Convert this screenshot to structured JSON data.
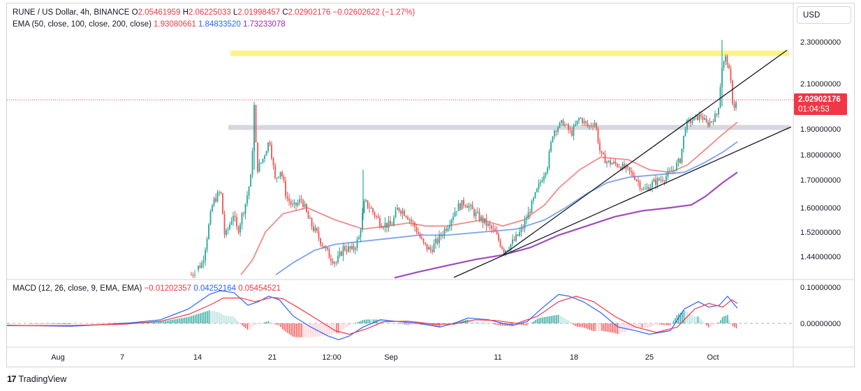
{
  "header": {
    "symbol": "RUNE / US Dollar, 4h, BINANCE",
    "open_label": "O",
    "open": "2.05461959",
    "high_label": "H",
    "high": "2.06225033",
    "low_label": "L",
    "low": "2.01998457",
    "close_label": "C",
    "close": "2.02902176",
    "change": "−0.02602622 (−1.27%)"
  },
  "ema_legend": {
    "label": "EMA (50, close, 100, close, 200, close)",
    "v50": "1.93080661",
    "v100": "1.84833520",
    "v200": "1.73233078"
  },
  "macd_legend": {
    "label": "MACD (12, 26, close, 9, EMA, EMA)",
    "hist": "−0.01202357",
    "macd": "0.04252164",
    "signal": "0.05454521"
  },
  "currency_button": "USD",
  "price_badge": {
    "price": "2.02902176",
    "countdown": "01:04:53"
  },
  "branding": "TradingView",
  "colors": {
    "up": "#26a69a",
    "down": "#ef5350",
    "ema50": "#f28b8b",
    "ema100": "#7ea1ef",
    "ema200": "#a04bbd",
    "macd": "#2962ff",
    "signal": "#f23645",
    "resistance_zone": "#fff176",
    "support_zone": "#d1d4dc"
  },
  "chart_data": [
    {
      "type": "candlestick",
      "x_labels": [
        "Aug",
        "7",
        "14",
        "21",
        "12:00",
        "Sep",
        "11",
        "18",
        "25",
        "Oct"
      ],
      "y_ticks": [
        "2.30000000",
        "2.10000000",
        "1.90000000",
        "1.80000000",
        "1.70000000",
        "1.60000000",
        "1.52000000",
        "1.44000000"
      ],
      "y_tick_values": [
        2.3,
        2.1,
        1.9,
        1.8,
        1.7,
        1.6,
        1.52,
        1.44
      ],
      "last_price": 2.02902176,
      "keypoints": [
        [
          274,
          1.38
        ],
        [
          290,
          1.42
        ],
        [
          305,
          1.62
        ],
        [
          316,
          1.66
        ],
        [
          322,
          1.5
        ],
        [
          334,
          1.58
        ],
        [
          340,
          1.52
        ],
        [
          352,
          1.62
        ],
        [
          360,
          1.72
        ],
        [
          364,
          2.0
        ],
        [
          368,
          1.74
        ],
        [
          376,
          1.78
        ],
        [
          386,
          1.86
        ],
        [
          394,
          1.7
        ],
        [
          402,
          1.74
        ],
        [
          410,
          1.64
        ],
        [
          420,
          1.6
        ],
        [
          432,
          1.63
        ],
        [
          442,
          1.56
        ],
        [
          452,
          1.52
        ],
        [
          462,
          1.48
        ],
        [
          472,
          1.44
        ],
        [
          482,
          1.42
        ],
        [
          492,
          1.47
        ],
        [
          505,
          1.46
        ],
        [
          514,
          1.5
        ],
        [
          522,
          1.62
        ],
        [
          530,
          1.6
        ],
        [
          545,
          1.55
        ],
        [
          560,
          1.54
        ],
        [
          570,
          1.6
        ],
        [
          582,
          1.58
        ],
        [
          596,
          1.53
        ],
        [
          606,
          1.48
        ],
        [
          616,
          1.46
        ],
        [
          626,
          1.49
        ],
        [
          640,
          1.54
        ],
        [
          654,
          1.6
        ],
        [
          666,
          1.62
        ],
        [
          680,
          1.58
        ],
        [
          695,
          1.55
        ],
        [
          708,
          1.52
        ],
        [
          722,
          1.46
        ],
        [
          736,
          1.49
        ],
        [
          748,
          1.53
        ],
        [
          760,
          1.6
        ],
        [
          772,
          1.68
        ],
        [
          784,
          1.76
        ],
        [
          792,
          1.89
        ],
        [
          806,
          1.93
        ],
        [
          818,
          1.88
        ],
        [
          830,
          1.95
        ],
        [
          842,
          1.91
        ],
        [
          852,
          1.93
        ],
        [
          860,
          1.8
        ],
        [
          870,
          1.77
        ],
        [
          885,
          1.76
        ],
        [
          898,
          1.74
        ],
        [
          910,
          1.71
        ],
        [
          922,
          1.66
        ],
        [
          936,
          1.69
        ],
        [
          952,
          1.71
        ],
        [
          964,
          1.74
        ],
        [
          974,
          1.78
        ],
        [
          982,
          1.92
        ],
        [
          992,
          1.94
        ],
        [
          1004,
          1.96
        ],
        [
          1012,
          1.92
        ],
        [
          1020,
          1.94
        ],
        [
          1028,
          1.97
        ],
        [
          1034,
          2.18
        ],
        [
          1040,
          2.23
        ],
        [
          1046,
          2.12
        ],
        [
          1050,
          1.99
        ],
        [
          1056,
          2.03
        ]
      ]
    },
    {
      "type": "line",
      "name": "EMA",
      "series": [
        {
          "name": "50",
          "color": "#f28b8b",
          "points": [
            [
              345,
              1.38
            ],
            [
              362,
              1.43
            ],
            [
              380,
              1.52
            ],
            [
              405,
              1.58
            ],
            [
              440,
              1.6
            ],
            [
              480,
              1.56
            ],
            [
              520,
              1.53
            ],
            [
              555,
              1.54
            ],
            [
              585,
              1.55
            ],
            [
              610,
              1.54
            ],
            [
              640,
              1.54
            ],
            [
              690,
              1.56
            ],
            [
              720,
              1.54
            ],
            [
              750,
              1.56
            ],
            [
              780,
              1.61
            ],
            [
              800,
              1.67
            ],
            [
              830,
              1.74
            ],
            [
              860,
              1.79
            ],
            [
              900,
              1.78
            ],
            [
              930,
              1.74
            ],
            [
              960,
              1.73
            ],
            [
              985,
              1.76
            ],
            [
              1010,
              1.82
            ],
            [
              1035,
              1.88
            ],
            [
              1056,
              1.93
            ]
          ]
        },
        {
          "name": "100",
          "color": "#7ea1ef",
          "points": [
            [
              395,
              1.38
            ],
            [
              420,
              1.42
            ],
            [
              450,
              1.46
            ],
            [
              480,
              1.48
            ],
            [
              520,
              1.49
            ],
            [
              560,
              1.5
            ],
            [
              600,
              1.51
            ],
            [
              640,
              1.51
            ],
            [
              690,
              1.52
            ],
            [
              740,
              1.53
            ],
            [
              780,
              1.56
            ],
            [
              810,
              1.6
            ],
            [
              840,
              1.65
            ],
            [
              870,
              1.69
            ],
            [
              900,
              1.71
            ],
            [
              940,
              1.72
            ],
            [
              980,
              1.73
            ],
            [
              1010,
              1.77
            ],
            [
              1035,
              1.81
            ],
            [
              1056,
              1.85
            ]
          ]
        },
        {
          "name": "200",
          "color": "#a04bbd",
          "points": [
            [
              565,
              1.37
            ],
            [
              600,
              1.39
            ],
            [
              640,
              1.41
            ],
            [
              680,
              1.43
            ],
            [
              720,
              1.445
            ],
            [
              760,
              1.47
            ],
            [
              800,
              1.51
            ],
            [
              840,
              1.54
            ],
            [
              880,
              1.57
            ],
            [
              920,
              1.59
            ],
            [
              960,
              1.6
            ],
            [
              990,
              1.61
            ],
            [
              1010,
              1.64
            ],
            [
              1035,
              1.69
            ],
            [
              1056,
              1.73
            ]
          ]
        }
      ]
    },
    {
      "type": "line",
      "name": "MACD",
      "y_ticks": [
        "0.10000000",
        "0.00000000"
      ],
      "y_tick_values": [
        0.1,
        0.0
      ],
      "series": [
        {
          "name": "MACD",
          "color": "#2962ff",
          "points": [
            [
              10,
              -0.005
            ],
            [
              100,
              -0.008
            ],
            [
              180,
              0.0
            ],
            [
              230,
              0.01
            ],
            [
              270,
              0.04
            ],
            [
              300,
              0.08
            ],
            [
              315,
              0.09
            ],
            [
              335,
              0.085
            ],
            [
              355,
              0.05
            ],
            [
              370,
              0.06
            ],
            [
              385,
              0.075
            ],
            [
              400,
              0.065
            ],
            [
              420,
              0.02
            ],
            [
              445,
              -0.01
            ],
            [
              470,
              -0.035
            ],
            [
              485,
              -0.045
            ],
            [
              500,
              -0.035
            ],
            [
              520,
              -0.01
            ],
            [
              545,
              0.01
            ],
            [
              570,
              0.005
            ],
            [
              600,
              0.0
            ],
            [
              630,
              -0.01
            ],
            [
              650,
              0.0
            ],
            [
              670,
              0.015
            ],
            [
              700,
              0.01
            ],
            [
              720,
              0.0
            ],
            [
              735,
              -0.005
            ],
            [
              755,
              0.005
            ],
            [
              775,
              0.04
            ],
            [
              800,
              0.08
            ],
            [
              815,
              0.075
            ],
            [
              835,
              0.06
            ],
            [
              860,
              0.03
            ],
            [
              885,
              -0.01
            ],
            [
              910,
              -0.02
            ],
            [
              930,
              -0.03
            ],
            [
              960,
              -0.02
            ],
            [
              980,
              0.04
            ],
            [
              1000,
              0.06
            ],
            [
              1015,
              0.045
            ],
            [
              1030,
              0.05
            ],
            [
              1042,
              0.075
            ],
            [
              1048,
              0.06
            ],
            [
              1056,
              0.042
            ]
          ]
        },
        {
          "name": "Signal",
          "color": "#f23645",
          "points": [
            [
              10,
              -0.006
            ],
            [
              100,
              -0.006
            ],
            [
              180,
              -0.002
            ],
            [
              230,
              0.006
            ],
            [
              270,
              0.025
            ],
            [
              300,
              0.05
            ],
            [
              320,
              0.07
            ],
            [
              345,
              0.07
            ],
            [
              365,
              0.06
            ],
            [
              390,
              0.072
            ],
            [
              405,
              0.068
            ],
            [
              430,
              0.04
            ],
            [
              455,
              0.01
            ],
            [
              480,
              -0.02
            ],
            [
              500,
              -0.03
            ],
            [
              525,
              -0.015
            ],
            [
              550,
              0.005
            ],
            [
              585,
              0.006
            ],
            [
              620,
              -0.002
            ],
            [
              650,
              -0.002
            ],
            [
              680,
              0.01
            ],
            [
              710,
              0.008
            ],
            [
              740,
              0.0
            ],
            [
              770,
              0.02
            ],
            [
              800,
              0.06
            ],
            [
              825,
              0.075
            ],
            [
              850,
              0.06
            ],
            [
              880,
              0.02
            ],
            [
              910,
              -0.01
            ],
            [
              940,
              -0.025
            ],
            [
              970,
              -0.01
            ],
            [
              995,
              0.04
            ],
            [
              1015,
              0.055
            ],
            [
              1035,
              0.045
            ],
            [
              1048,
              0.065
            ],
            [
              1056,
              0.055
            ]
          ]
        }
      ]
    }
  ]
}
